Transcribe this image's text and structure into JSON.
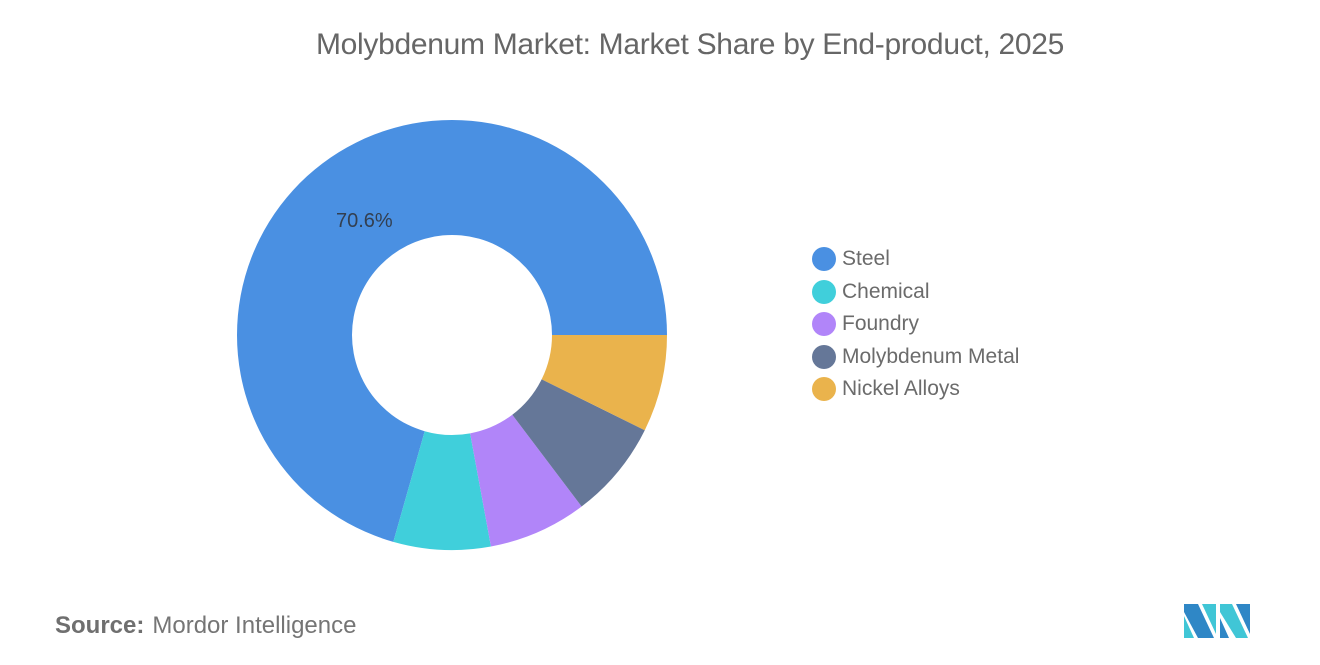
{
  "title": "Molybdenum Market: Market Share by End-product, 2025",
  "legend": [
    {
      "label": "Steel",
      "color": "#4a90e2"
    },
    {
      "label": "Chemical",
      "color": "#40cfdb"
    },
    {
      "label": "Foundry",
      "color": "#b185f9"
    },
    {
      "label": "Molybdenum Metal",
      "color": "#657798"
    },
    {
      "label": "Nickel Alloys",
      "color": "#eab34c"
    }
  ],
  "data_label": "70.6%",
  "source": {
    "key": "Source:",
    "value": "Mordor Intelligence"
  },
  "chart_data": {
    "type": "pie",
    "variant": "donut",
    "title": "Molybdenum Market: Market Share by End-product, 2025",
    "categories": [
      "Steel",
      "Chemical",
      "Foundry",
      "Molybdenum Metal",
      "Nickel Alloys"
    ],
    "values": [
      70.6,
      7.3,
      7.4,
      7.4,
      7.3
    ],
    "colors": [
      "#4a90e2",
      "#40cfdb",
      "#b185f9",
      "#657798",
      "#eab34c"
    ],
    "annotations": [
      {
        "category": "Steel",
        "text": "70.6%"
      }
    ],
    "legend_position": "right",
    "unit": "%"
  }
}
